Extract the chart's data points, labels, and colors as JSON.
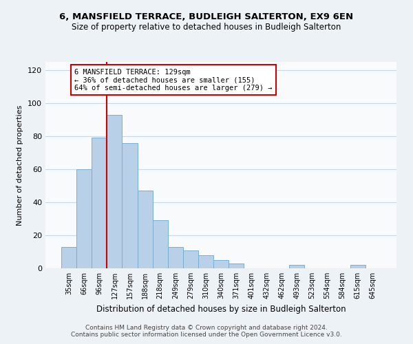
{
  "title": "6, MANSFIELD TERRACE, BUDLEIGH SALTERTON, EX9 6EN",
  "subtitle": "Size of property relative to detached houses in Budleigh Salterton",
  "xlabel": "Distribution of detached houses by size in Budleigh Salterton",
  "ylabel": "Number of detached properties",
  "bar_labels": [
    "35sqm",
    "66sqm",
    "96sqm",
    "127sqm",
    "157sqm",
    "188sqm",
    "218sqm",
    "249sqm",
    "279sqm",
    "310sqm",
    "340sqm",
    "371sqm",
    "401sqm",
    "432sqm",
    "462sqm",
    "493sqm",
    "523sqm",
    "554sqm",
    "584sqm",
    "615sqm",
    "645sqm"
  ],
  "bar_heights": [
    13,
    60,
    79,
    93,
    76,
    47,
    29,
    13,
    11,
    8,
    5,
    3,
    0,
    0,
    0,
    2,
    0,
    0,
    0,
    2,
    0
  ],
  "bar_color": "#b8d0e8",
  "bar_edge_color": "#7aaed0",
  "vline_index": 3,
  "vline_color": "#cc0000",
  "annotation_title": "6 MANSFIELD TERRACE: 129sqm",
  "annotation_line1": "← 36% of detached houses are smaller (155)",
  "annotation_line2": "64% of semi-detached houses are larger (279) →",
  "annotation_box_color": "#cc0000",
  "annotation_bg": "#ffffff",
  "ylim": [
    0,
    125
  ],
  "yticks": [
    0,
    20,
    40,
    60,
    80,
    100,
    120
  ],
  "footer1": "Contains HM Land Registry data © Crown copyright and database right 2024.",
  "footer2": "Contains public sector information licensed under the Open Government Licence v3.0.",
  "background_color": "#edf2f7",
  "plot_bg_color": "#f8fafc",
  "grid_color": "#c8d8e8"
}
